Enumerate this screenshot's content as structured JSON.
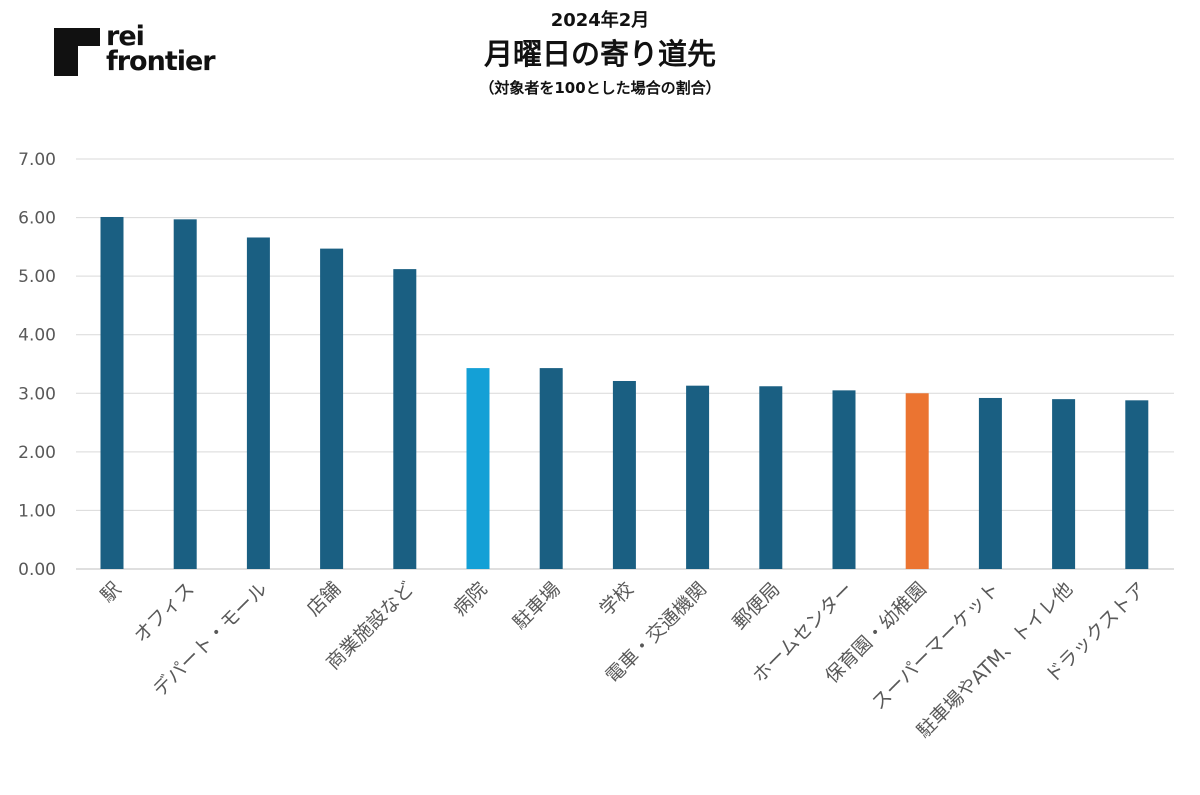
{
  "brand": {
    "logo_line1": "rei",
    "logo_line2": "frontier",
    "logo_color": "#111111"
  },
  "chart_data": {
    "type": "bar",
    "title": "月曜日の寄り道先",
    "date_label": "2024年2月",
    "subtitle": "（対象者を100とした場合の割合）",
    "xlabel": "",
    "ylabel": "",
    "ylim": [
      0,
      7
    ],
    "yticks": [
      "0.00",
      "1.00",
      "2.00",
      "3.00",
      "4.00",
      "5.00",
      "6.00",
      "7.00"
    ],
    "grid": true,
    "legend": "none",
    "categories": [
      "駅",
      "オフィス",
      "デパート・モール",
      "店舗",
      "商業施設など",
      "病院",
      "駐車場",
      "学校",
      "電車・交通機関",
      "郵便局",
      "ホームセンター",
      "保育園・幼稚園",
      "スーパーマーケット",
      "駐車場やATM、トイレ他",
      "ドラックストア"
    ],
    "values": [
      6.01,
      5.97,
      5.66,
      5.47,
      5.12,
      3.43,
      3.43,
      3.21,
      3.13,
      3.12,
      3.05,
      3.0,
      2.92,
      2.9,
      2.88
    ],
    "colors": {
      "default": "#1a5f82",
      "highlight_light": "#14a0d6",
      "highlight_orange": "#eb7431"
    },
    "bar_colors": [
      "default",
      "default",
      "default",
      "default",
      "default",
      "highlight_light",
      "default",
      "default",
      "default",
      "default",
      "default",
      "highlight_orange",
      "default",
      "default",
      "default"
    ]
  }
}
